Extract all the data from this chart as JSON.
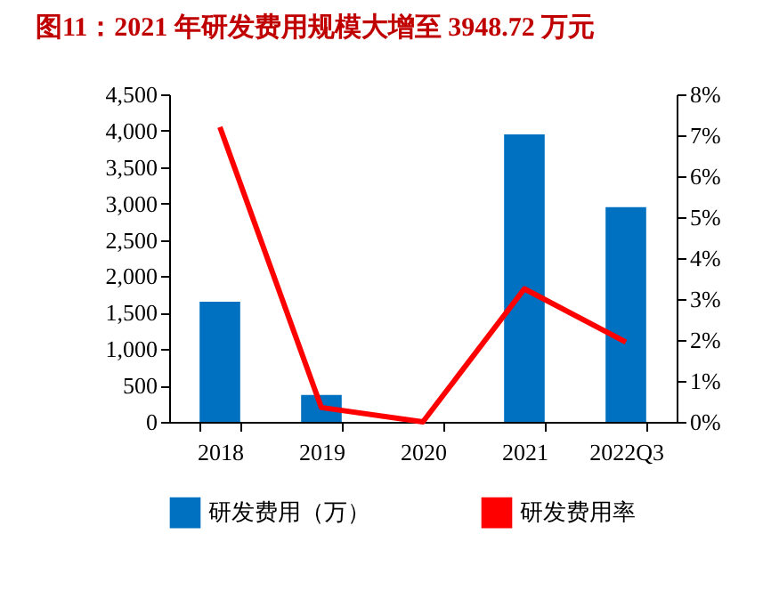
{
  "chart_data": {
    "type": "bar",
    "title": "图11：2021 年研发费用规模大增至 3948.72 万元",
    "categories": [
      "2018",
      "2019",
      "2020",
      "2021",
      "2022Q3"
    ],
    "series": [
      {
        "name": "研发费用（万）",
        "color": "#0070c0",
        "values": [
          1650,
          370,
          null,
          3950,
          2950
        ]
      },
      {
        "name": "研发费用率",
        "type": "line",
        "color": "#ff0000",
        "axis": "y2",
        "values": [
          7.2,
          0.35,
          0,
          3.25,
          1.95
        ]
      }
    ],
    "ylim": [
      0,
      4500
    ],
    "yticks": [
      {
        "value": 0,
        "label": "0"
      },
      {
        "value": 500,
        "label": "500"
      },
      {
        "value": 1000,
        "label": "1,000"
      },
      {
        "value": 1500,
        "label": "1,500"
      },
      {
        "value": 2000,
        "label": "2,000"
      },
      {
        "value": 2500,
        "label": "2,500"
      },
      {
        "value": 3000,
        "label": "3,000"
      },
      {
        "value": 3500,
        "label": "3,500"
      },
      {
        "value": 4000,
        "label": "4,000"
      },
      {
        "value": 4500,
        "label": "4,500"
      }
    ],
    "y2lim": [
      0,
      8
    ],
    "y2ticks": [
      {
        "value": 0,
        "label": "0%"
      },
      {
        "value": 1,
        "label": "1%"
      },
      {
        "value": 2,
        "label": "2%"
      },
      {
        "value": 3,
        "label": "3%"
      },
      {
        "value": 4,
        "label": "4%"
      },
      {
        "value": 5,
        "label": "5%"
      },
      {
        "value": 6,
        "label": "6%"
      },
      {
        "value": 7,
        "label": "7%"
      },
      {
        "value": 8,
        "label": "8%"
      }
    ],
    "grid": false,
    "legend": "bottom"
  }
}
